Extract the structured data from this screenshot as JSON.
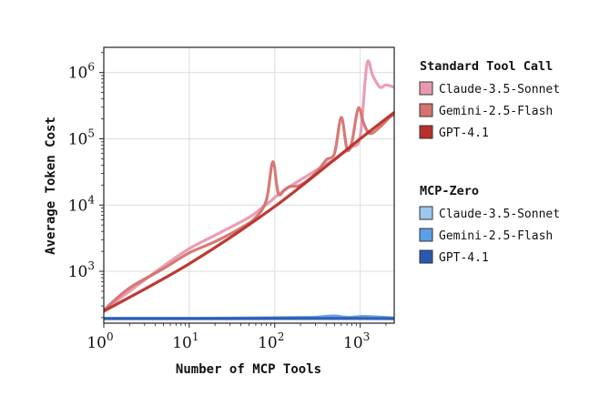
{
  "chart_data": {
    "type": "line",
    "xlabel": "Number of MCP Tools",
    "ylabel": "Average Token Cost",
    "x_scale": "log",
    "y_scale": "log",
    "xlim": [
      1,
      2500
    ],
    "ylim": [
      165,
      2400000
    ],
    "x_ticks": [
      {
        "value": 1,
        "base": "10",
        "exp": "0"
      },
      {
        "value": 10,
        "base": "10",
        "exp": "1"
      },
      {
        "value": 100,
        "base": "10",
        "exp": "2"
      },
      {
        "value": 1000,
        "base": "10",
        "exp": "3"
      }
    ],
    "y_ticks": [
      {
        "value": 1000,
        "base": "10",
        "exp": "3"
      },
      {
        "value": 10000,
        "base": "10",
        "exp": "4"
      },
      {
        "value": 100000,
        "base": "10",
        "exp": "5"
      },
      {
        "value": 1000000,
        "base": "10",
        "exp": "6"
      }
    ],
    "grid": true,
    "legend_position": "right",
    "legend_groups": [
      {
        "title": "Standard Tool Call",
        "series": [
          {
            "name": "Claude-3.5-Sonnet",
            "color": "#e899b0",
            "x": [
              1,
              2,
              5,
              10,
              20,
              50,
              70,
              90,
              100,
              150,
              200,
              300,
              400,
              500,
              600,
              800,
              1000,
              1200,
              1400,
              1700,
              2000,
              2500
            ],
            "y": [
              260,
              500,
              1200,
              2200,
              3500,
              6500,
              9000,
              11500,
              13000,
              19000,
              24000,
              33000,
              42000,
              48000,
              58000,
              75000,
              110000,
              1350000,
              900000,
              600000,
              650000,
              600000
            ]
          },
          {
            "name": "Gemini-2.5-Flash",
            "color": "#d4736f",
            "x": [
              1,
              2,
              5,
              10,
              20,
              40,
              60,
              80,
              95,
              110,
              130,
              150,
              200,
              300,
              400,
              500,
              600,
              700,
              800,
              950,
              1100,
              1300,
              1700,
              2200,
              2500
            ],
            "y": [
              260,
              560,
              1100,
              1900,
              2800,
              4500,
              6500,
              12000,
              45000,
              15000,
              17000,
              19000,
              20000,
              30000,
              48000,
              60000,
              210000,
              70000,
              90000,
              290000,
              170000,
              120000,
              150000,
              210000,
              230000
            ]
          },
          {
            "name": "GPT-4.1",
            "color": "#b8302a",
            "x": [
              1,
              10,
              100,
              1000,
              2500
            ],
            "y": [
              250,
              1300,
              9500,
              100000,
              250000
            ]
          }
        ]
      },
      {
        "title": "MCP-Zero",
        "series": [
          {
            "name": "Claude-3.5-Sonnet",
            "color": "#9cc8f0",
            "x": [
              1,
              10,
              50,
              100,
              200,
              500,
              700,
              1000,
              1500,
              2000,
              2500
            ],
            "y": [
              195,
              196,
              197,
              200,
              199,
              202,
              204,
              200,
              203,
              201,
              198
            ]
          },
          {
            "name": "Gemini-2.5-Flash",
            "color": "#5c9ee8",
            "x": [
              1,
              10,
              50,
              100,
              200,
              300,
              500,
              700,
              1000,
              1500,
              2500
            ],
            "y": [
              195,
              195,
              197,
              199,
              201,
              203,
              212,
              200,
              208,
              205,
              196
            ]
          },
          {
            "name": "GPT-4.1",
            "color": "#2a5ab0",
            "x": [
              1,
              10,
              100,
              1000,
              2500
            ],
            "y": [
              193,
              193,
              194,
              194,
              193
            ]
          }
        ]
      }
    ]
  }
}
